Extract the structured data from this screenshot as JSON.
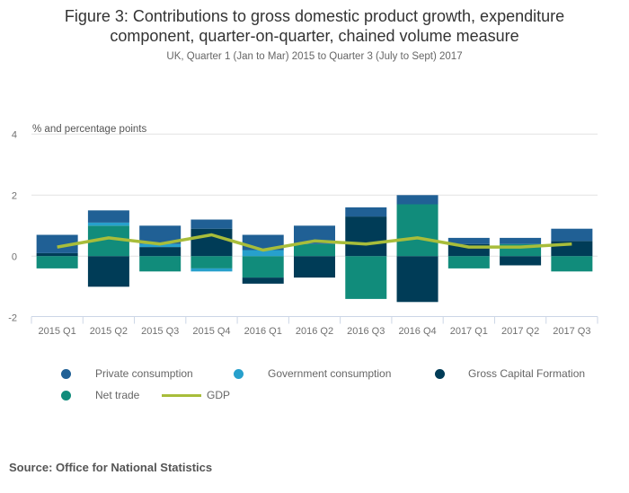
{
  "header": {
    "title_line1": "Figure 3: Contributions to gross domestic product growth, expenditure",
    "title_line2": "component, quarter-on-quarter, chained volume measure",
    "subtitle": "UK, Quarter 1 (Jan to Mar) 2015 to Quarter 3 (July to Sept) 2017"
  },
  "footer": {
    "source": "Source: Office for National Statistics"
  },
  "chart_data": {
    "type": "bar",
    "stacked": true,
    "title": "Figure 3: Contributions to gross domestic product growth, expenditure component, quarter-on-quarter, chained volume measure",
    "subtitle": "UK, Quarter 1 (Jan to Mar) 2015 to Quarter 3 (July to Sept) 2017",
    "xlabel": "",
    "ylabel": "% and percentage points",
    "ylim": [
      -2,
      4
    ],
    "yticks": [
      -2,
      0,
      2,
      4
    ],
    "grid": true,
    "legend_position": "bottom",
    "categories": [
      "2015 Q1",
      "2015 Q2",
      "2015 Q3",
      "2015 Q4",
      "2016 Q1",
      "2016 Q2",
      "2016 Q3",
      "2016 Q4",
      "2017 Q1",
      "2017 Q2",
      "2017 Q3"
    ],
    "series": [
      {
        "name": "Private consumption",
        "type": "bar",
        "color": "#206095",
        "values": [
          0.6,
          0.4,
          0.6,
          0.3,
          0.5,
          0.6,
          0.3,
          0.3,
          0.2,
          0.2,
          0.4
        ]
      },
      {
        "name": "Government consumption",
        "type": "bar",
        "color": "#27a0cc",
        "values": [
          0.0,
          0.1,
          0.1,
          -0.1,
          0.2,
          0.0,
          0.0,
          0.0,
          0.0,
          0.0,
          0.0
        ]
      },
      {
        "name": "Gross Capital Formation",
        "type": "bar",
        "color": "#003c57",
        "values": [
          0.1,
          -1.0,
          0.3,
          0.9,
          -0.2,
          -0.7,
          1.3,
          -1.5,
          0.4,
          -0.3,
          0.5
        ]
      },
      {
        "name": "Net trade",
        "type": "bar",
        "color": "#118c7b",
        "values": [
          -0.4,
          1.0,
          -0.5,
          -0.4,
          -0.7,
          0.4,
          -1.4,
          1.7,
          -0.4,
          0.4,
          -0.5
        ]
      },
      {
        "name": "GDP",
        "type": "line",
        "color": "#a8bd3a",
        "values": [
          0.3,
          0.6,
          0.4,
          0.7,
          0.2,
          0.5,
          0.4,
          0.6,
          0.3,
          0.3,
          0.4
        ]
      }
    ],
    "stack_order": {
      "positive": [
        "Net trade",
        "Gross Capital Formation",
        "Government consumption",
        "Private consumption"
      ],
      "negative": [
        "Net trade",
        "Government consumption",
        "Gross Capital Formation",
        "Private consumption"
      ]
    }
  },
  "legend": {
    "items": [
      {
        "label": "Private consumption",
        "color": "#206095",
        "marker": "dot"
      },
      {
        "label": "Government consumption",
        "color": "#27a0cc",
        "marker": "dot"
      },
      {
        "label": "Gross Capital Formation",
        "color": "#003c57",
        "marker": "dot"
      },
      {
        "label": "Net trade",
        "color": "#118c7b",
        "marker": "dot"
      },
      {
        "label": "GDP",
        "color": "#a8bd3a",
        "marker": "line"
      }
    ]
  }
}
